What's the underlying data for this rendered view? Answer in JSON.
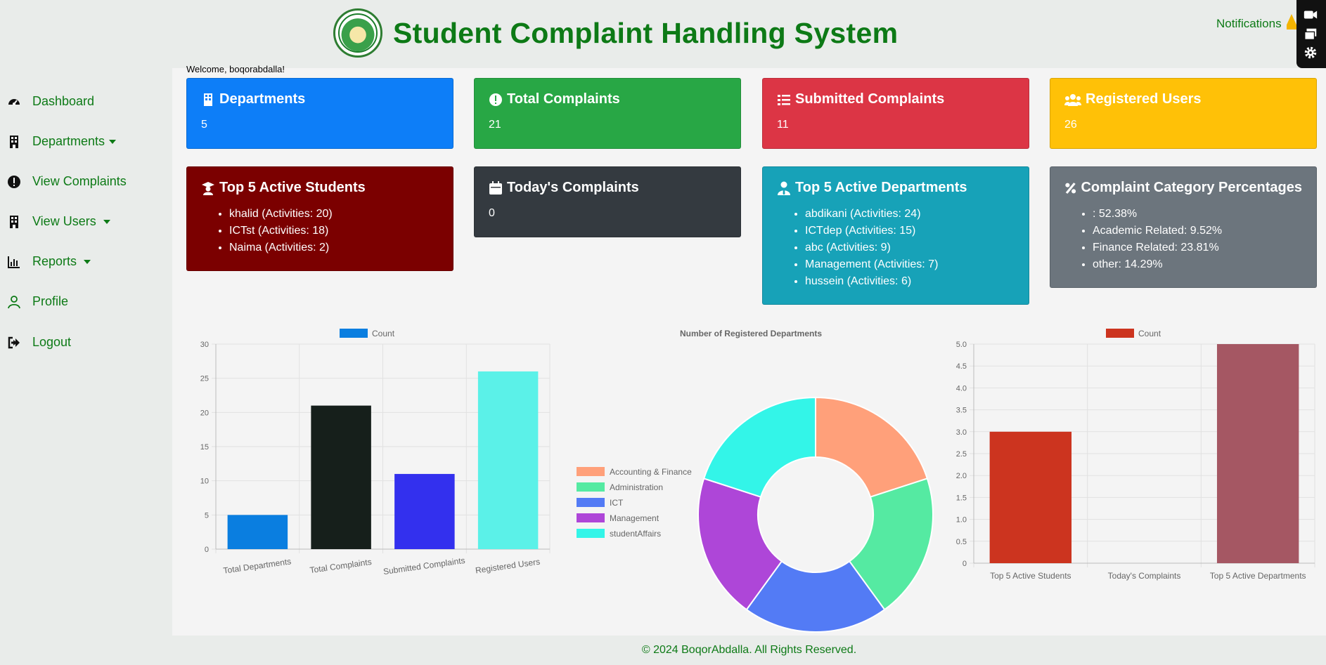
{
  "header": {
    "title": "Student Complaint Handling System",
    "notifications_label": "Notifications"
  },
  "sidebar": {
    "items": [
      {
        "label": "Dashboard",
        "icon": "gauge-icon"
      },
      {
        "label": "Departments",
        "icon": "building-icon"
      },
      {
        "label": "View Complaints",
        "icon": "exclamation-circle-icon"
      },
      {
        "label": "View Users",
        "icon": "building-icon"
      },
      {
        "label": "Reports",
        "icon": "bar-chart-icon"
      },
      {
        "label": "Profile",
        "icon": "person-icon"
      },
      {
        "label": "Logout",
        "icon": "logout-icon"
      }
    ]
  },
  "welcome": "Welcome, boqorabdalla!",
  "cards": {
    "departments": {
      "title": "Departments",
      "value": "5",
      "color": "#0d7ef8"
    },
    "total_complaints": {
      "title": "Total Complaints",
      "value": "21",
      "color": "#28a745"
    },
    "submitted_complaints": {
      "title": "Submitted Complaints",
      "value": "11",
      "color": "#dc3545"
    },
    "registered_users": {
      "title": "Registered Users",
      "value": "26",
      "color": "#ffc107"
    },
    "top_students": {
      "title": "Top 5 Active Students",
      "color": "#7b0000",
      "items": [
        "khalid (Activities: 20)",
        "ICTst (Activities: 18)",
        "Naima (Activities: 2)"
      ]
    },
    "todays_complaints": {
      "title": "Today's Complaints",
      "value": "0",
      "color": "#343a40"
    },
    "top_departments": {
      "title": "Top 5 Active Departments",
      "color": "#17a2b8",
      "items": [
        "abdikani (Activities: 24)",
        "ICTdep (Activities: 15)",
        "abc (Activities: 9)",
        "Management (Activities: 7)",
        "hussein (Activities: 6)"
      ]
    },
    "category_percentages": {
      "title": "Complaint Category Percentages",
      "color": "#6c757d",
      "items": [
        ": 52.38%",
        "Academic Related: 9.52%",
        "Finance Related: 23.81%",
        "other: 14.29%"
      ]
    }
  },
  "chart_data": [
    {
      "type": "bar",
      "legend": "Count",
      "categories": [
        "Total Departments",
        "Total Complaints",
        "Submitted Complaints",
        "Registered Users"
      ],
      "values": [
        5,
        21,
        11,
        26
      ],
      "colors": [
        "#0a7ee0",
        "#161f1b",
        "#3330ee",
        "#5bf1e8"
      ],
      "ylim": [
        0,
        30
      ],
      "yticks": [
        "0",
        "5",
        "10",
        "15",
        "20",
        "25",
        "30"
      ]
    },
    {
      "type": "pie",
      "title": "Number of Registered Departments",
      "labels": [
        "Accounting & Finance",
        "Administration",
        "ICT",
        "Management",
        "studentAffairs"
      ],
      "values": [
        1,
        1,
        1,
        1,
        1
      ],
      "colors": [
        "#ffa07a",
        "#55eaa2",
        "#537bf5",
        "#ae46d8",
        "#33f5e8"
      ]
    },
    {
      "type": "bar",
      "legend": "Count",
      "categories": [
        "Top 5 Active Students",
        "Today's Complaints",
        "Top 5 Active Departments"
      ],
      "values": [
        3,
        0,
        5
      ],
      "colors": [
        "#cc341f",
        "#cc341f",
        "#a55763"
      ],
      "ylim": [
        0,
        5
      ],
      "yticks": [
        "0",
        "0.5",
        "1.0",
        "1.5",
        "2.0",
        "2.5",
        "3.0",
        "3.5",
        "4.0",
        "4.5",
        "5.0"
      ]
    }
  ],
  "footer": "© 2024 BoqorAbdalla. All Rights Reserved."
}
